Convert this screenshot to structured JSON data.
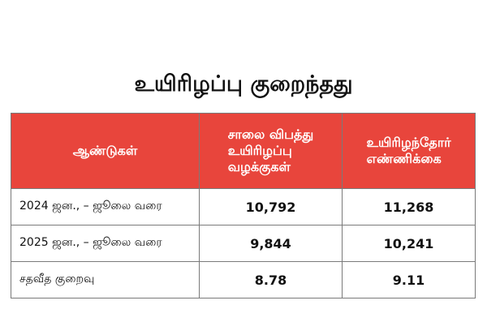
{
  "title": "உயிரிழப்பு குறைந்தது",
  "colors": {
    "header_bg": "#e8453c",
    "header_text": "#ffffff",
    "border": "#7a7a7a"
  },
  "table": {
    "headers": [
      {
        "lines": [
          "ஆண்டுகள்"
        ]
      },
      {
        "lines": [
          "சாலை விபத்து",
          "உயிரிழப்பு",
          "வழக்குகள்"
        ]
      },
      {
        "lines": [
          "உயிரிழந்தோர்",
          "எண்ணிக்கை"
        ]
      }
    ],
    "rows": [
      {
        "period": "2024 ஜன., – ஜூலை வரை",
        "cases": "10,792",
        "deaths": "11,268"
      },
      {
        "period": "2025 ஜன., – ஜூலை வரை",
        "cases": "9,844",
        "deaths": "10,241"
      },
      {
        "period": "சதவீத குறைவு",
        "cases": "8.78",
        "deaths": "9.11"
      }
    ]
  }
}
